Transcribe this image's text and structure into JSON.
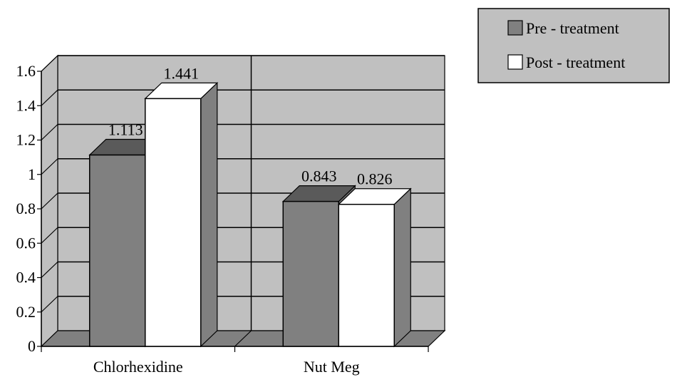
{
  "chart_data": {
    "type": "bar",
    "categories": [
      "Chlorhexidine",
      "Nut Meg"
    ],
    "series": [
      {
        "name": "Pre - treatment",
        "values": [
          1.113,
          0.843
        ],
        "labels": [
          "1.113",
          "0.843"
        ]
      },
      {
        "name": "Post - treatment",
        "values": [
          1.441,
          0.826
        ],
        "labels": [
          "1.441",
          "0.826"
        ]
      }
    ],
    "yticks": [
      "0",
      "0.2",
      "0.4",
      "0.6",
      "0.8",
      "1",
      "1.2",
      "1.4",
      "1.6"
    ],
    "ylim": [
      0,
      1.6
    ],
    "grid": true,
    "legend_position": "top-right",
    "colors": {
      "pre_treatment": "#808080",
      "post_treatment": "#ffffff",
      "back_wall": "#c0c0c0",
      "floor": "#808080",
      "left_wall": "#bfbfbf"
    }
  }
}
